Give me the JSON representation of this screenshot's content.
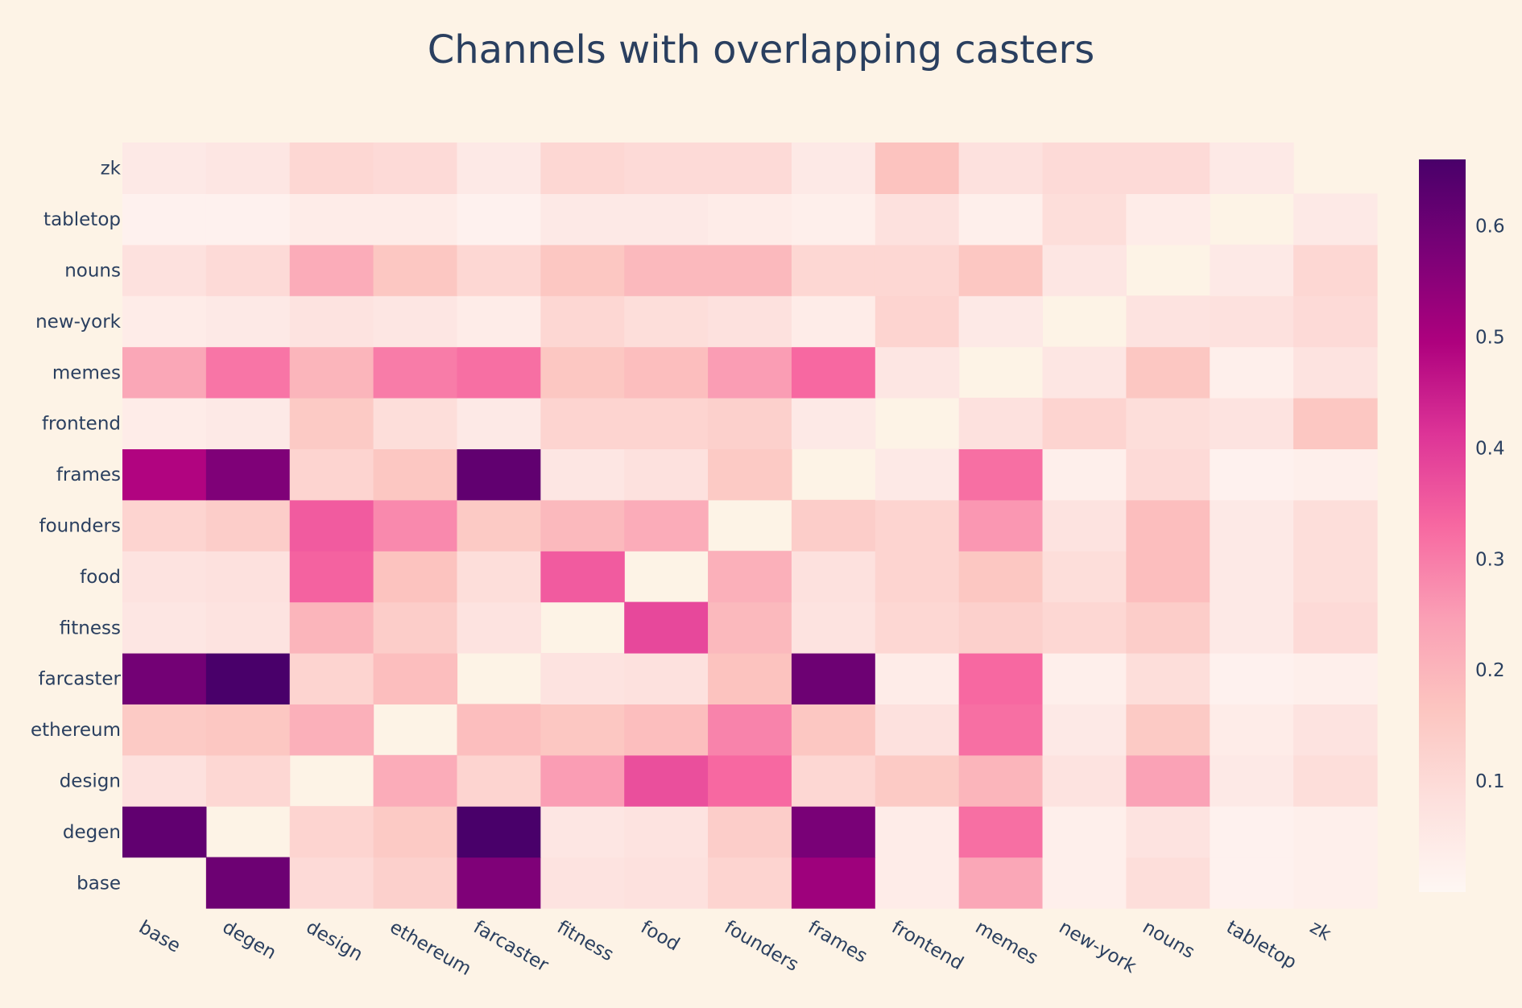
{
  "chart_data": {
    "type": "heatmap",
    "title": "Channels with overlapping casters",
    "x_labels": [
      "base",
      "degen",
      "design",
      "ethereum",
      "farcaster",
      "fitness",
      "food",
      "founders",
      "frames",
      "frontend",
      "memes",
      "new-york",
      "nouns",
      "tabletop",
      "zk"
    ],
    "y_labels": [
      "base",
      "degen",
      "design",
      "ethereum",
      "farcaster",
      "fitness",
      "food",
      "founders",
      "frames",
      "frontend",
      "memes",
      "new-york",
      "nouns",
      "tabletop",
      "zk"
    ],
    "z": [
      [
        null,
        0.6,
        0.1,
        0.13,
        0.57,
        0.07,
        0.08,
        0.12,
        0.52,
        0.04,
        0.23,
        0.03,
        0.09,
        0.02,
        0.03
      ],
      [
        0.62,
        null,
        0.12,
        0.15,
        0.66,
        0.06,
        0.07,
        0.14,
        0.58,
        0.04,
        0.32,
        0.03,
        0.07,
        0.02,
        0.03
      ],
      [
        0.08,
        0.11,
        null,
        0.22,
        0.12,
        0.25,
        0.37,
        0.33,
        0.11,
        0.15,
        0.2,
        0.07,
        0.24,
        0.05,
        0.09
      ],
      [
        0.15,
        0.16,
        0.21,
        null,
        0.18,
        0.16,
        0.18,
        0.29,
        0.16,
        0.08,
        0.32,
        0.05,
        0.15,
        0.04,
        0.07
      ],
      [
        0.59,
        0.66,
        0.12,
        0.18,
        null,
        0.07,
        0.08,
        0.17,
        0.6,
        0.04,
        0.33,
        0.03,
        0.09,
        0.02,
        0.03
      ],
      [
        0.06,
        0.07,
        0.2,
        0.14,
        0.07,
        null,
        0.38,
        0.19,
        0.07,
        0.11,
        0.13,
        0.11,
        0.14,
        0.05,
        0.1
      ],
      [
        0.07,
        0.08,
        0.34,
        0.17,
        0.09,
        0.35,
        null,
        0.21,
        0.08,
        0.12,
        0.16,
        0.09,
        0.18,
        0.05,
        0.09
      ],
      [
        0.12,
        0.14,
        0.35,
        0.28,
        0.15,
        0.19,
        0.22,
        null,
        0.14,
        0.12,
        0.26,
        0.07,
        0.18,
        0.05,
        0.09
      ],
      [
        0.49,
        0.57,
        0.12,
        0.16,
        0.62,
        0.06,
        0.08,
        0.15,
        null,
        0.05,
        0.32,
        0.03,
        0.1,
        0.02,
        0.03
      ],
      [
        0.04,
        0.05,
        0.15,
        0.09,
        0.05,
        0.12,
        0.12,
        0.13,
        0.05,
        null,
        0.08,
        0.12,
        0.09,
        0.07,
        0.16
      ],
      [
        0.23,
        0.31,
        0.2,
        0.3,
        0.32,
        0.16,
        0.18,
        0.25,
        0.33,
        0.06,
        null,
        0.06,
        0.16,
        0.03,
        0.07
      ],
      [
        0.04,
        0.05,
        0.07,
        0.06,
        0.04,
        0.11,
        0.09,
        0.08,
        0.04,
        0.12,
        0.05,
        null,
        0.07,
        0.08,
        0.1
      ],
      [
        0.08,
        0.1,
        0.22,
        0.16,
        0.11,
        0.16,
        0.19,
        0.19,
        0.11,
        0.11,
        0.16,
        0.06,
        null,
        0.05,
        0.11
      ],
      [
        0.02,
        0.02,
        0.04,
        0.04,
        0.02,
        0.05,
        0.05,
        0.04,
        0.03,
        0.08,
        0.03,
        0.09,
        0.04,
        null,
        0.05
      ],
      [
        0.05,
        0.06,
        0.11,
        0.1,
        0.05,
        0.11,
        0.1,
        0.1,
        0.05,
        0.17,
        0.08,
        0.1,
        0.1,
        0.05,
        null
      ]
    ],
    "zmin": 0.0,
    "zmax": 0.66,
    "colorscale": [
      "#fef7f3",
      "#fde0dd",
      "#fcc5c0",
      "#fa9fb5",
      "#f768a1",
      "#dd3497",
      "#ae017e",
      "#7a0177",
      "#49006a"
    ],
    "colorbar": {
      "ticks": [
        0.1,
        0.2,
        0.3,
        0.4,
        0.5,
        0.6
      ],
      "tick_labels": [
        "0.1",
        "0.2",
        "0.3",
        "0.4",
        "0.5",
        "0.6"
      ]
    }
  }
}
